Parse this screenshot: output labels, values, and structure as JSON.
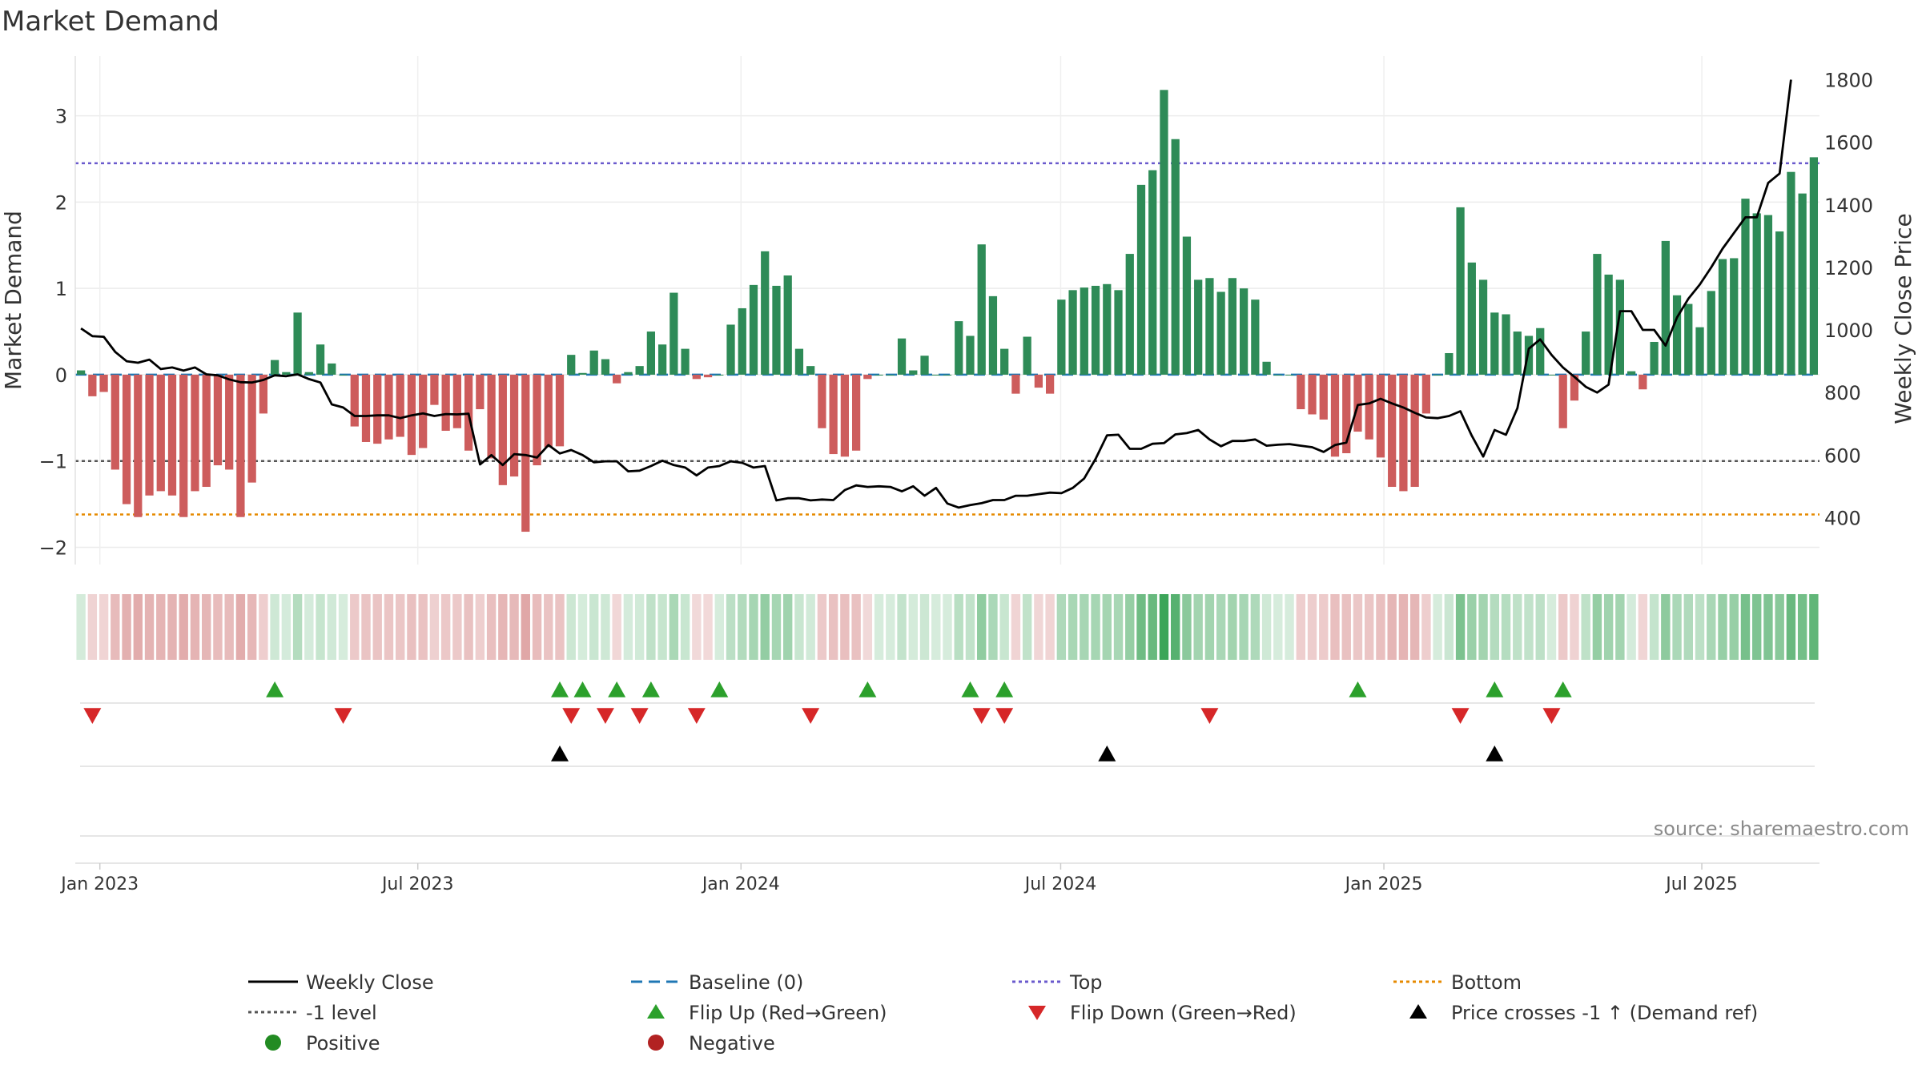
{
  "chart_data": {
    "type": "bar",
    "title": "Market Demand",
    "ylabel": "Market Demand",
    "y2label": "Weekly Close Price",
    "ylim": [
      -2.2,
      3.6
    ],
    "y2lim": [
      250,
      1850
    ],
    "yticks": [
      "−2",
      "−1",
      "0",
      "1",
      "2",
      "3"
    ],
    "ytick_values": [
      -2,
      -1,
      0,
      1,
      2,
      3
    ],
    "y2ticks": [
      "400",
      "600",
      "800",
      "1000",
      "1200",
      "1400",
      "1600",
      "1800"
    ],
    "y2tick_values": [
      400,
      600,
      800,
      1000,
      1200,
      1400,
      1600,
      1800
    ],
    "x_start": "2022-12-18",
    "x_end": "2025-09-06",
    "xticks": [
      "Jan 2023",
      "Jul 2023",
      "Jan 2024",
      "Jul 2024",
      "Jan 2025",
      "Jul 2025"
    ],
    "xtick_dates": [
      "2023-01-01",
      "2023-07-01",
      "2024-01-01",
      "2024-07-01",
      "2025-01-01",
      "2025-07-01"
    ],
    "reference_lines": {
      "top": 2.45,
      "minus_one": -1.0,
      "bottom": -1.62,
      "baseline": 0
    },
    "series": [
      {
        "name": "Market Demand",
        "type": "bar",
        "values": [
          0.05,
          -0.25,
          -0.2,
          -1.1,
          -1.5,
          -1.65,
          -1.4,
          -1.35,
          -1.4,
          -1.65,
          -1.35,
          -1.3,
          -1.05,
          -1.1,
          -1.65,
          -1.25,
          -0.45,
          0.17,
          0.03,
          0.72,
          0.03,
          0.35,
          0.13,
          0.0,
          -0.6,
          -0.78,
          -0.8,
          -0.75,
          -0.72,
          -0.93,
          -0.85,
          -0.35,
          -0.65,
          -0.62,
          -0.88,
          -0.4,
          -0.97,
          -1.28,
          -1.18,
          -1.82,
          -1.05,
          -0.84,
          -0.83,
          0.23,
          0.02,
          0.28,
          0.18,
          -0.1,
          0.03,
          0.1,
          0.5,
          0.35,
          0.95,
          0.3,
          -0.05,
          -0.03,
          0.0,
          0.58,
          0.77,
          1.04,
          1.43,
          1.03,
          1.15,
          0.3,
          0.1,
          -0.62,
          -0.92,
          -0.95,
          -0.88,
          -0.05,
          0.0,
          0.0,
          0.42,
          0.05,
          0.22,
          0.0,
          0.0,
          0.62,
          0.45,
          1.51,
          0.91,
          0.3,
          -0.22,
          0.44,
          -0.15,
          -0.22,
          0.87,
          0.98,
          1.01,
          1.03,
          1.05,
          0.98,
          1.4,
          2.2,
          2.37,
          3.3,
          2.73,
          1.6,
          1.1,
          1.12,
          0.96,
          1.12,
          1.0,
          0.87,
          0.15,
          0.0,
          0.0,
          -0.4,
          -0.46,
          -0.52,
          -0.95,
          -0.91,
          -0.66,
          -0.75,
          -0.96,
          -1.3,
          -1.35,
          -1.3,
          -0.45,
          0.0,
          0.25,
          1.94,
          1.3,
          1.1,
          0.72,
          0.7,
          0.5,
          0.45,
          0.54,
          0.0,
          -0.62,
          -0.3,
          0.5,
          1.4,
          1.16,
          1.1,
          0.04,
          -0.17,
          0.38,
          1.55,
          0.92,
          0.82,
          0.55,
          0.97,
          1.34,
          1.35,
          2.04,
          1.87,
          1.85,
          1.66,
          2.35,
          2.1,
          2.52
        ]
      },
      {
        "name": "Weekly Close",
        "type": "line",
        "axis": "right",
        "values": [
          1005,
          980,
          978,
          930,
          900,
          895,
          905,
          875,
          880,
          870,
          880,
          858,
          855,
          842,
          833,
          832,
          840,
          855,
          852,
          858,
          843,
          832,
          762,
          752,
          725,
          725,
          727,
          727,
          718,
          727,
          733,
          725,
          731,
          730,
          732,
          570,
          600,
          568,
          603,
          600,
          592,
          632,
          605,
          616,
          600,
          577,
          580,
          580,
          548,
          550,
          565,
          582,
          568,
          560,
          535,
          560,
          565,
          580,
          575,
          560,
          565,
          455,
          462,
          462,
          455,
          458,
          456,
          488,
          503,
          498,
          500,
          498,
          484,
          500,
          470,
          495,
          445,
          432,
          440,
          446,
          456,
          456,
          470,
          470,
          475,
          480,
          478,
          495,
          525,
          588,
          663,
          665,
          620,
          620,
          636,
          638,
          666,
          670,
          680,
          650,
          628,
          645,
          645,
          650,
          630,
          633,
          635,
          630,
          625,
          610,
          632,
          640,
          760,
          765,
          780,
          765,
          752,
          735,
          720,
          718,
          725,
          740,
          662,
          595,
          680,
          665,
          750,
          940,
          970,
          920,
          880,
          850,
          818,
          800,
          825,
          1060,
          1060,
          1000,
          1000,
          950,
          1040,
          1100,
          1145,
          1200,
          1260,
          1310,
          1360,
          1360,
          1470,
          1500,
          1800
        ]
      }
    ]
  },
  "flip_up_weeks": [
    17,
    42,
    44,
    47,
    50,
    56,
    69,
    78,
    81,
    112,
    124,
    130
  ],
  "flip_down_weeks": [
    1,
    23,
    43,
    46,
    49,
    54,
    64,
    79,
    81,
    99,
    121,
    129
  ],
  "price_cross_weeks": [
    42,
    90,
    124
  ],
  "source": "source: sharemaestro.com",
  "legend": [
    {
      "label": "Weekly Close",
      "symbol": "line",
      "color": "#000000"
    },
    {
      "label": "Baseline (0)",
      "symbol": "dash",
      "color": "#1f77b4"
    },
    {
      "label": "Top",
      "symbol": "dot",
      "color": "#6a5acd"
    },
    {
      "label": "Bottom",
      "symbol": "dot",
      "color": "#e68a00"
    },
    {
      "label": "-1 level",
      "symbol": "dot",
      "color": "#555555"
    },
    {
      "label": "Flip Up (Red→Green)",
      "symbol": "tri-up",
      "color": "#2ca02c"
    },
    {
      "label": "Flip Down (Green→Red)",
      "symbol": "tri-down",
      "color": "#d62728"
    },
    {
      "label": "Price crosses -1 ↑ (Demand ref)",
      "symbol": "tri-up",
      "color": "#000000"
    },
    {
      "label": "Positive",
      "symbol": "circle",
      "color": "#228b22"
    },
    {
      "label": "Negative",
      "symbol": "circle",
      "color": "#b22222"
    }
  ],
  "colors": {
    "positive": "#2e8b57",
    "negative": "#cd5c5c",
    "flip_up": "#2ca02c",
    "flip_down": "#d62728"
  }
}
